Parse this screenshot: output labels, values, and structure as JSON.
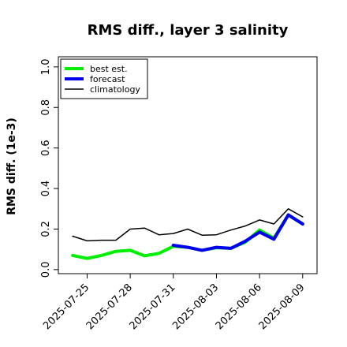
{
  "chart_data": {
    "type": "line",
    "title": "RMS diff., layer 3 salinity",
    "xlabel": "",
    "ylabel": "RMS diff. (1e-3)",
    "ylim": [
      -0.02,
      1.05
    ],
    "yticks": [
      0.0,
      0.2,
      0.4,
      0.6,
      0.8,
      1.0
    ],
    "ytick_labels": [
      "0.0",
      "0.2",
      "0.4",
      "0.6",
      "0.8",
      "1.0"
    ],
    "xlim": [
      "2025-07-23",
      "2025-08-10"
    ],
    "xticks": [
      "2025-07-25",
      "2025-07-28",
      "2025-07-31",
      "2025-08-03",
      "2025-08-06",
      "2025-08-09"
    ],
    "xtick_colors": [
      "#000000",
      "#000000",
      "#228B22",
      "#000000",
      "#000000",
      "#000000"
    ],
    "grid": false,
    "legend_position": "top-left",
    "series": [
      {
        "name": "best est.",
        "color": "#00ee00",
        "x": [
          "2025-07-24",
          "2025-07-25",
          "2025-07-26",
          "2025-07-27",
          "2025-07-28",
          "2025-07-29",
          "2025-07-30",
          "2025-07-31",
          "2025-08-01",
          "2025-08-02",
          "2025-08-03",
          "2025-08-04",
          "2025-08-05",
          "2025-08-06",
          "2025-08-07",
          "2025-08-08",
          "2025-08-09"
        ],
        "values": [
          0.07,
          0.055,
          0.07,
          0.09,
          0.095,
          0.068,
          0.08,
          0.115,
          0.11,
          0.095,
          0.108,
          0.105,
          0.135,
          0.195,
          0.155,
          0.27,
          0.225
        ]
      },
      {
        "name": "forecast",
        "color": "#0000ee",
        "x": [
          "2025-07-31",
          "2025-08-01",
          "2025-08-02",
          "2025-08-03",
          "2025-08-04",
          "2025-08-05",
          "2025-08-06",
          "2025-08-07",
          "2025-08-08",
          "2025-08-09"
        ],
        "values": [
          0.12,
          0.11,
          0.095,
          0.11,
          0.105,
          0.14,
          0.185,
          0.15,
          0.27,
          0.225
        ]
      },
      {
        "name": "climatology",
        "color": "#000000",
        "x": [
          "2025-07-24",
          "2025-07-25",
          "2025-07-26",
          "2025-07-27",
          "2025-07-28",
          "2025-07-29",
          "2025-07-30",
          "2025-07-31",
          "2025-08-01",
          "2025-08-02",
          "2025-08-03",
          "2025-08-04",
          "2025-08-05",
          "2025-08-06",
          "2025-08-07",
          "2025-08-08",
          "2025-08-09"
        ],
        "values": [
          0.165,
          0.142,
          0.145,
          0.145,
          0.2,
          0.205,
          0.172,
          0.178,
          0.2,
          0.17,
          0.172,
          0.195,
          0.215,
          0.245,
          0.225,
          0.3,
          0.26
        ]
      }
    ]
  }
}
